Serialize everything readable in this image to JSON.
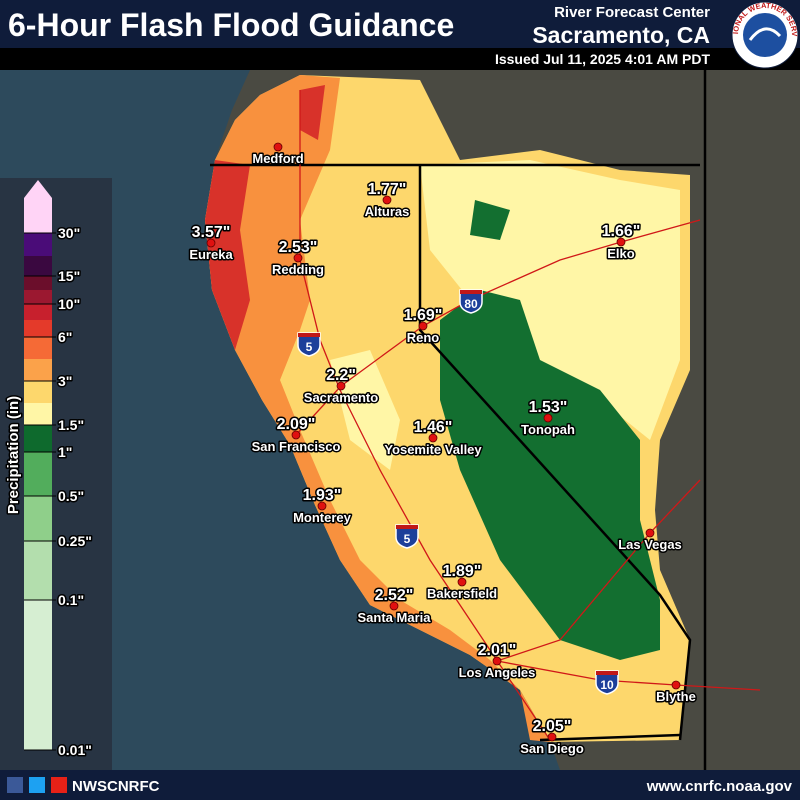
{
  "header": {
    "title": "6-Hour Flash Flood Guidance",
    "office_label": "River Forecast Center",
    "office": "Sacramento, CA",
    "issued": "Issued Jul 11, 2025 4:01 AM PDT",
    "logo_text": "NATIONAL WEATHER SERVICE"
  },
  "legend": {
    "title": "Precipitation (in)",
    "ticks": [
      "30\"",
      "15\"",
      "10\"",
      "6\"",
      "3\"",
      "1.5\"",
      "1\"",
      "0.5\"",
      "0.25\"",
      "0.1\"",
      "0.01\""
    ],
    "colors": [
      "#d6eed2",
      "#b3dead",
      "#8fcf8a",
      "#52ad5c",
      "#0e6a2d",
      "#fff6a6",
      "#fdd76c",
      "#fba24a",
      "#f56a36",
      "#e43a2a",
      "#c7202d",
      "#9b1830",
      "#6b0e2b",
      "#3a0840",
      "#4a0c78",
      "#ffd4f6"
    ]
  },
  "cities": [
    {
      "name": "Medford"
    },
    {
      "name": "Alturas",
      "value": "1.77\""
    },
    {
      "name": "Eureka",
      "value": "3.57\""
    },
    {
      "name": "Redding",
      "value": "2.53\""
    },
    {
      "name": "Elko",
      "value": "1.66\""
    },
    {
      "name": "Reno",
      "value": "1.69\""
    },
    {
      "name": "Sacramento",
      "value": "2.2\""
    },
    {
      "name": "San Francisco",
      "value": "2.09\""
    },
    {
      "name": "Yosemite Valley",
      "value": "1.46\""
    },
    {
      "name": "Tonopah",
      "value": "1.53\""
    },
    {
      "name": "Monterey",
      "value": "1.93\""
    },
    {
      "name": "Las Vegas"
    },
    {
      "name": "Bakersfield",
      "value": "1.89\""
    },
    {
      "name": "Santa Maria",
      "value": "2.52\""
    },
    {
      "name": "Los Angeles",
      "value": "2.01\""
    },
    {
      "name": "Blythe"
    },
    {
      "name": "San Diego",
      "value": "2.05\""
    }
  ],
  "highways": [
    "5",
    "80",
    "5",
    "10"
  ],
  "footer": {
    "handle": "NWSCNRFC",
    "url": "www.cnrfc.noaa.gov"
  }
}
